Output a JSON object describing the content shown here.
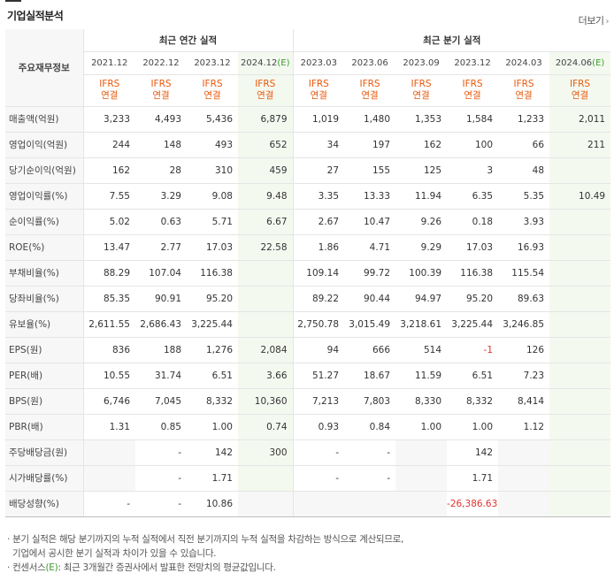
{
  "header": {
    "title": "기업실적분석",
    "more_label": "더보기"
  },
  "table": {
    "corner_label": "주요재무정보",
    "sections": {
      "annual": "최근 연간 실적",
      "quarterly": "최근 분기 실적"
    },
    "periods": [
      {
        "label": "2021.12",
        "est": false
      },
      {
        "label": "2022.12",
        "est": false
      },
      {
        "label": "2023.12",
        "est": false
      },
      {
        "label": "2024.12",
        "suffix": "(E)",
        "est": true
      },
      {
        "label": "2023.03",
        "est": false
      },
      {
        "label": "2023.06",
        "est": false
      },
      {
        "label": "2023.09",
        "est": false
      },
      {
        "label": "2023.12",
        "est": false
      },
      {
        "label": "2024.03",
        "est": false
      },
      {
        "label": "2024.06",
        "suffix": "(E)",
        "est": true
      }
    ],
    "ifrs_line1": "IFRS",
    "ifrs_line2": "연결",
    "rows": [
      {
        "label": "매출액(억원)",
        "values": [
          "3,233",
          "4,493",
          "5,436",
          "6,879",
          "1,019",
          "1,480",
          "1,353",
          "1,584",
          "1,233",
          "2,011"
        ]
      },
      {
        "label": "영업이익(억원)",
        "values": [
          "244",
          "148",
          "493",
          "652",
          "34",
          "197",
          "162",
          "100",
          "66",
          "211"
        ]
      },
      {
        "label": "당기순이익(억원)",
        "values": [
          "162",
          "28",
          "310",
          "459",
          "27",
          "155",
          "125",
          "3",
          "48",
          ""
        ]
      },
      {
        "label": "영업이익률(%)",
        "group_top": true,
        "values": [
          "7.55",
          "3.29",
          "9.08",
          "9.48",
          "3.35",
          "13.33",
          "11.94",
          "6.35",
          "5.35",
          "10.49"
        ]
      },
      {
        "label": "순이익률(%)",
        "values": [
          "5.02",
          "0.63",
          "5.71",
          "6.67",
          "2.67",
          "10.47",
          "9.26",
          "0.18",
          "3.93",
          ""
        ]
      },
      {
        "label": "ROE(%)",
        "values": [
          "13.47",
          "2.77",
          "17.03",
          "22.58",
          "1.86",
          "4.71",
          "9.29",
          "17.03",
          "16.93",
          ""
        ]
      },
      {
        "label": "부채비율(%)",
        "group_top": true,
        "values": [
          "88.29",
          "107.04",
          "116.38",
          "",
          "109.14",
          "99.72",
          "100.39",
          "116.38",
          "115.54",
          ""
        ]
      },
      {
        "label": "당좌비율(%)",
        "values": [
          "85.35",
          "90.91",
          "95.20",
          "",
          "89.22",
          "90.44",
          "94.97",
          "95.20",
          "89.63",
          ""
        ]
      },
      {
        "label": "유보율(%)",
        "values": [
          "2,611.55",
          "2,686.43",
          "3,225.44",
          "",
          "2,750.78",
          "3,015.49",
          "3,218.61",
          "3,225.44",
          "3,246.85",
          ""
        ]
      },
      {
        "label": "EPS(원)",
        "group_top": true,
        "values": [
          "836",
          "188",
          "1,276",
          "2,084",
          "94",
          "666",
          "514",
          "-1",
          "126",
          ""
        ]
      },
      {
        "label": "PER(배)",
        "values": [
          "10.55",
          "31.74",
          "6.51",
          "3.66",
          "51.27",
          "18.67",
          "11.59",
          "6.51",
          "7.23",
          ""
        ]
      },
      {
        "label": "BPS(원)",
        "values": [
          "6,746",
          "7,045",
          "8,332",
          "10,360",
          "7,213",
          "7,803",
          "8,330",
          "8,332",
          "8,414",
          ""
        ]
      },
      {
        "label": "PBR(배)",
        "values": [
          "1.31",
          "0.85",
          "1.00",
          "0.74",
          "0.93",
          "0.84",
          "1.00",
          "1.00",
          "1.12",
          ""
        ]
      },
      {
        "label": "주당배당금(원)",
        "group_top": true,
        "values": [
          "",
          "-",
          "142",
          "300",
          "-",
          "-",
          "",
          "142",
          "",
          ""
        ]
      },
      {
        "label": "시가배당률(%)",
        "values": [
          "",
          "-",
          "1.71",
          "",
          "-",
          "-",
          "",
          "1.71",
          "",
          ""
        ]
      },
      {
        "label": "배당성향(%)",
        "values": [
          "-",
          "-",
          "10.86",
          "",
          "",
          "",
          "",
          "-26,386.63",
          "",
          ""
        ]
      }
    ]
  },
  "notes": {
    "line1": "· 분기 실적은 해당 분기까지의 누적 실적에서 직전 분기까지의 누적 실적을 차감하는 방식으로 계산되므로,",
    "line2": "기업에서 공시한 분기 실적과 차이가 있을 수 있습니다.",
    "line3_pre": "· 컨센서스",
    "line3_e": "(E)",
    "line3_post": ": 최근 3개월간 증권사에서 발표한 전망치의 평균값입니다."
  },
  "colors": {
    "ifrs": "#e8590c",
    "estimate_bg": "#f4f9f0",
    "negative": "#e03131",
    "estimate_mark": "#3d9a2b"
  }
}
